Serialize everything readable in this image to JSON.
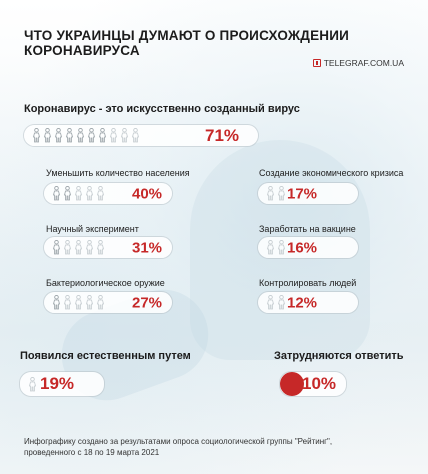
{
  "title": "ЧТО УКРАИНЦЫ ДУМАЮТ О ПРОИСХОЖДЕНИИ КОРОНАВИРУСА",
  "source": "TELEGRAF.COM.UA",
  "colors": {
    "accent": "#c62828",
    "icon_filled": "#9aa3a8",
    "icon_empty": "#c5ccd0"
  },
  "chart_data": {
    "type": "table",
    "title": "ЧТО УКРАИНЦЫ ДУМАЮТ О ПРОИСХОЖДЕНИИ КОРОНАВИРУСА",
    "unit": "%",
    "items": [
      {
        "label": "Коронавирус - это искусственно созданный вирус",
        "value": 71,
        "value_text": "71%"
      },
      {
        "label": "Уменьшить количество населения",
        "value": 40,
        "value_text": "40%"
      },
      {
        "label": "Научный эксперимент",
        "value": 31,
        "value_text": "31%"
      },
      {
        "label": "Бактериологическое оружие",
        "value": 27,
        "value_text": "27%"
      },
      {
        "label": "Создание экономического кризиса",
        "value": 17,
        "value_text": "17%"
      },
      {
        "label": "Заработать на вакцине",
        "value": 16,
        "value_text": "16%"
      },
      {
        "label": "Контролировать людей",
        "value": 12,
        "value_text": "12%"
      },
      {
        "label": "Появился естественным путем",
        "value": 19,
        "value_text": "19%"
      },
      {
        "label": "Затрудняются ответить",
        "value": 10,
        "value_text": "10%"
      }
    ]
  },
  "footer": {
    "line1": "Инфографику создано за результатами опроса социологической группы \"Рейтинг\",",
    "line2": "проведенного с 18 по 19 марта 2021"
  }
}
